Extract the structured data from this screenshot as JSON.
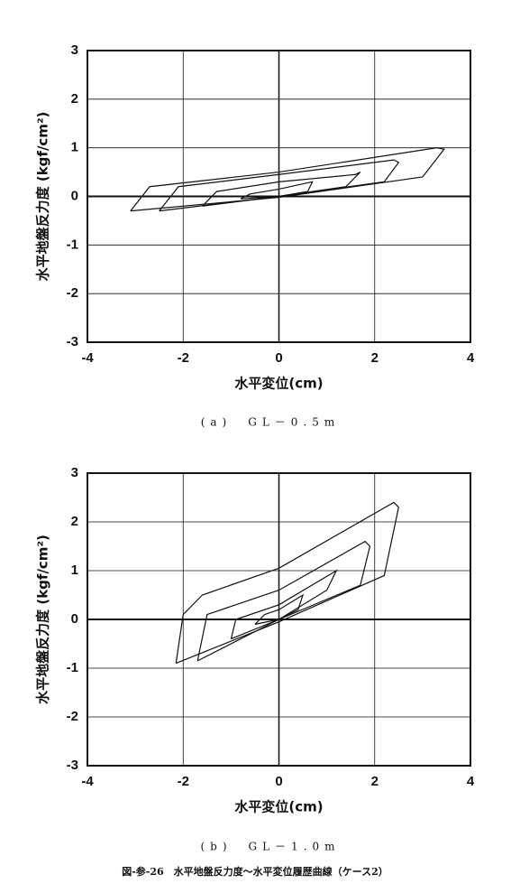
{
  "chart_data": [
    {
      "type": "line",
      "xlabel": "水平変位(cm)",
      "ylabel": "水平地盤反力度 (kgf/cm²)",
      "caption": "(a)　GL－0.5m",
      "xlim": [
        -4,
        4
      ],
      "ylim": [
        -3,
        3
      ],
      "xticks": [
        -4,
        -2,
        0,
        2,
        4
      ],
      "yticks": [
        -3,
        -2,
        -1,
        0,
        1,
        2,
        3
      ],
      "grid": true,
      "series": [
        {
          "color": "#111111",
          "x": [
            -3.1,
            -2.7,
            0,
            3.3,
            3.45,
            3.0,
            0,
            -3.1
          ],
          "values": [
            -0.3,
            0.2,
            0.5,
            1.0,
            0.97,
            0.4,
            -0.02,
            -0.3
          ]
        },
        {
          "color": "#111111",
          "x": [
            -2.5,
            -2.1,
            0,
            2.4,
            2.5,
            2.2,
            0,
            -2.5
          ],
          "values": [
            -0.3,
            0.2,
            0.45,
            0.75,
            0.7,
            0.3,
            0,
            -0.3
          ]
        },
        {
          "color": "#111111",
          "x": [
            -1.6,
            -1.3,
            0,
            1.6,
            1.7,
            1.4,
            0,
            -1.6
          ],
          "values": [
            -0.2,
            0.1,
            0.3,
            0.45,
            0.5,
            0.2,
            0,
            -0.2
          ]
        },
        {
          "color": "#111111",
          "x": [
            -0.8,
            -0.6,
            0,
            0.7,
            0.6,
            0,
            -0.8
          ],
          "values": [
            -0.05,
            0.05,
            0.15,
            0.3,
            0.1,
            0,
            -0.05
          ]
        }
      ]
    },
    {
      "type": "line",
      "xlabel": "水平変位(cm)",
      "ylabel": "水平地盤反力度 (kgf/cm²)",
      "caption": "(b)　GL－1.0m",
      "xlim": [
        -4,
        4
      ],
      "ylim": [
        -3,
        3
      ],
      "xticks": [
        -4,
        -2,
        0,
        2,
        4
      ],
      "yticks": [
        -3,
        -2,
        -1,
        0,
        1,
        2,
        3
      ],
      "grid": true,
      "series": [
        {
          "color": "#111111",
          "x": [
            -2.15,
            -2.0,
            -1.6,
            0,
            2.4,
            2.5,
            2.2,
            0,
            -2.15
          ],
          "values": [
            -0.9,
            0.1,
            0.5,
            1.05,
            2.4,
            2.3,
            0.9,
            -0.05,
            -0.9
          ]
        },
        {
          "color": "#111111",
          "x": [
            -1.7,
            -1.5,
            0,
            1.8,
            1.9,
            1.7,
            0,
            -1.7
          ],
          "values": [
            -0.85,
            0.1,
            0.6,
            1.6,
            1.5,
            0.7,
            0,
            -0.85
          ]
        },
        {
          "color": "#111111",
          "x": [
            -1.0,
            -0.9,
            0,
            1.2,
            1.0,
            0,
            -1.0
          ],
          "values": [
            -0.4,
            0,
            0.3,
            1.0,
            0.6,
            0,
            -0.4
          ]
        },
        {
          "color": "#111111",
          "x": [
            -0.5,
            -0.3,
            0,
            0.5,
            0.4,
            0,
            -0.5
          ],
          "values": [
            -0.1,
            0.1,
            0.2,
            0.5,
            0.2,
            0,
            -0.1
          ]
        }
      ]
    }
  ],
  "figure_caption": "図-参-26　水平地盤反力度～水平変位履歴曲線（ケース2）"
}
